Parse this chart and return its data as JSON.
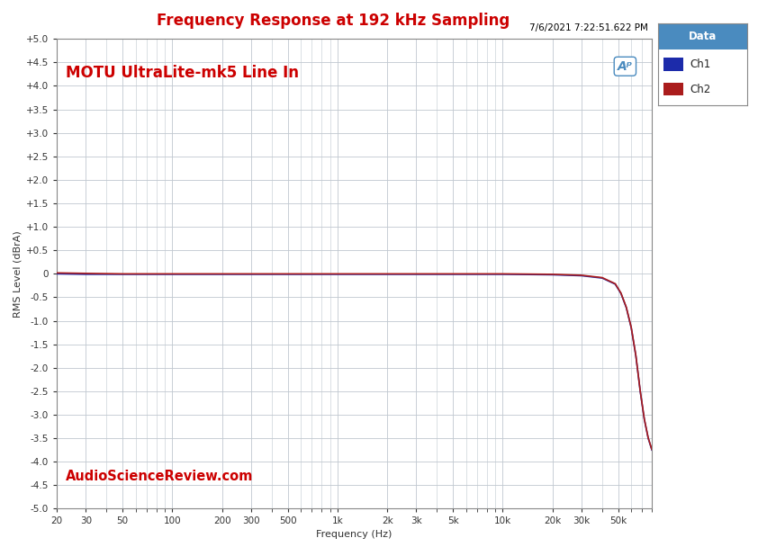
{
  "title": "Frequency Response at 192 kHz Sampling",
  "subtitle": "7/6/2021 7:22:51.622 PM",
  "ylabel": "RMS Level (dBrA)",
  "xlabel": "Frequency (Hz)",
  "watermark_text": "MOTU UltraLite-mk5 Line In",
  "watermark_color": "#cc0000",
  "brand_text": "AudioScienceReview.com",
  "brand_color": "#cc0000",
  "title_color": "#cc0000",
  "subtitle_color": "#000000",
  "background_color": "#ffffff",
  "plot_bg_color": "#ffffff",
  "grid_color": "#c0c8d0",
  "ylim": [
    -5.0,
    5.0
  ],
  "yticks": [
    -5.0,
    -4.5,
    -4.0,
    -3.5,
    -3.0,
    -2.5,
    -2.0,
    -1.5,
    -1.0,
    -0.5,
    0.0,
    0.5,
    1.0,
    1.5,
    2.0,
    2.5,
    3.0,
    3.5,
    4.0,
    4.5,
    5.0
  ],
  "xtick_positions": [
    20,
    30,
    50,
    100,
    200,
    300,
    500,
    1000,
    2000,
    3000,
    5000,
    10000,
    20000,
    30000,
    50000
  ],
  "xtick_labels": [
    "20",
    "30",
    "50",
    "100",
    "200",
    "300",
    "500",
    "1k",
    "2k",
    "3k",
    "5k",
    "10k",
    "20k",
    "30k",
    "50k"
  ],
  "xmin": 20,
  "xmax": 80000,
  "ch1_color": "#1c2baa",
  "ch2_color": "#aa1c1c",
  "legend_header_bg": "#4a8bbf",
  "legend_header_text": "#ffffff",
  "legend_header": "Data",
  "ch1_label": "Ch1",
  "ch2_label": "Ch2",
  "ch1_freq": [
    20,
    30,
    50,
    100,
    200,
    500,
    1000,
    2000,
    5000,
    10000,
    20000,
    30000,
    40000,
    48000,
    52000,
    56000,
    60000,
    64000,
    68000,
    72000,
    76000,
    80000
  ],
  "ch1_db": [
    0.0,
    -0.01,
    -0.01,
    -0.01,
    -0.01,
    -0.01,
    -0.01,
    -0.01,
    -0.01,
    -0.01,
    -0.02,
    -0.04,
    -0.09,
    -0.22,
    -0.42,
    -0.72,
    -1.15,
    -1.75,
    -2.5,
    -3.1,
    -3.5,
    -3.75
  ],
  "ch2_freq": [
    20,
    30,
    50,
    100,
    200,
    500,
    1000,
    2000,
    5000,
    10000,
    20000,
    30000,
    40000,
    48000,
    52000,
    56000,
    60000,
    64000,
    68000,
    72000,
    76000,
    80000
  ],
  "ch2_db": [
    0.02,
    0.01,
    0.0,
    0.0,
    0.0,
    0.0,
    0.0,
    0.0,
    0.0,
    0.0,
    -0.01,
    -0.03,
    -0.08,
    -0.21,
    -0.41,
    -0.71,
    -1.14,
    -1.74,
    -2.49,
    -3.09,
    -3.49,
    -3.74
  ]
}
